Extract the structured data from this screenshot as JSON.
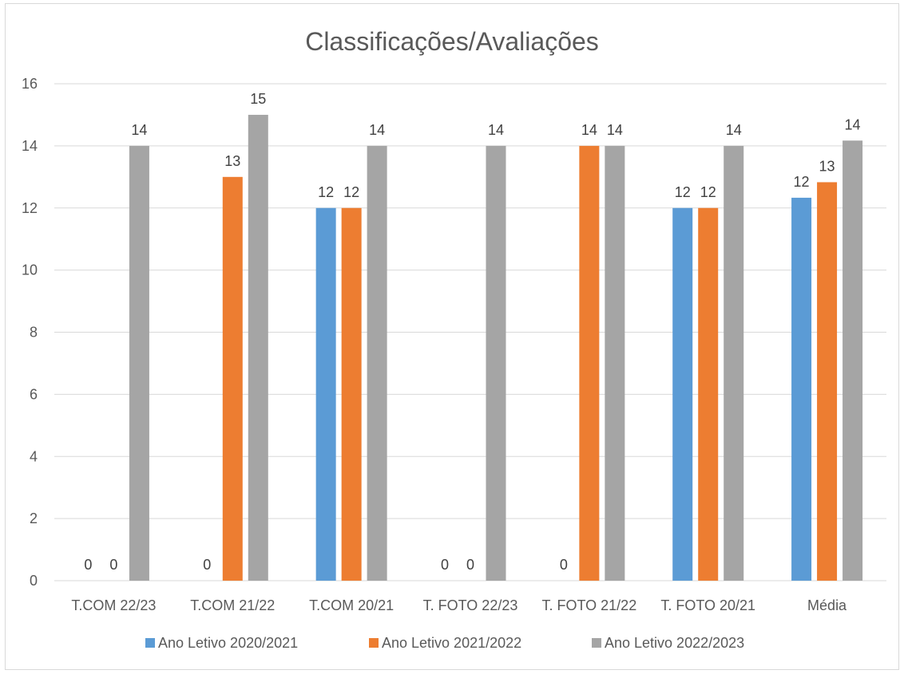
{
  "chart_data": {
    "type": "bar",
    "title": "Classificações/Avaliações",
    "categories": [
      "T.COM 22/23",
      "T.COM 21/22",
      "T.COM 20/21",
      "T. FOTO 22/23",
      "T. FOTO 21/22",
      "T. FOTO 20/21",
      "Média"
    ],
    "series": [
      {
        "name": "Ano Letivo 2020/2021",
        "color": "#5B9BD5",
        "values": [
          0,
          0,
          12,
          0,
          0,
          12,
          12.33
        ],
        "labels": [
          "0",
          "0",
          "12",
          "0",
          "0",
          "12",
          "12"
        ]
      },
      {
        "name": "Ano Letivo 2021/2022",
        "color": "#ED7D31",
        "values": [
          0,
          13,
          12,
          0,
          14,
          12,
          12.83
        ],
        "labels": [
          "0",
          "13",
          "12",
          "0",
          "14",
          "12",
          "13"
        ]
      },
      {
        "name": "Ano Letivo 2022/2023",
        "color": "#A5A5A5",
        "values": [
          14,
          15,
          14,
          14,
          14,
          14,
          14.17
        ],
        "labels": [
          "14",
          "15",
          "14",
          "14",
          "14",
          "14",
          "14"
        ]
      }
    ],
    "yticks": [
      "0",
      "2",
      "4",
      "6",
      "8",
      "10",
      "12",
      "14",
      "16"
    ],
    "ylim": [
      0,
      16
    ],
    "xlabel": "",
    "ylabel": "",
    "grid": true,
    "legend_position": "bottom"
  }
}
